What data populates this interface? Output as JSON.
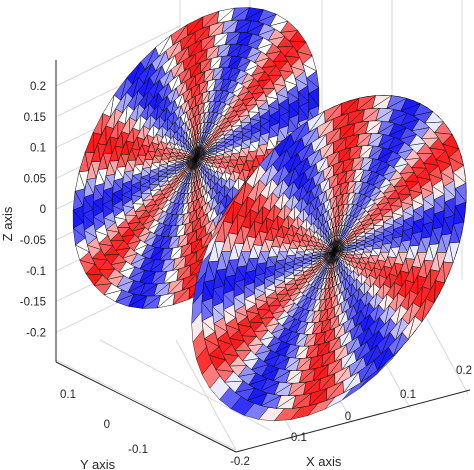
{
  "chart_data": {
    "type": "surface3d",
    "description_visible": "two tilted triangulated discs with a diverging blue-white-red colormap",
    "zlabel": "Z axis",
    "xlabel": "X axis",
    "ylabel": "Y axis",
    "z_ticks": [
      "0.2",
      "0.15",
      "0.1",
      "0.05",
      "0",
      "-0.05",
      "-0.1",
      "-0.15",
      "-0.2"
    ],
    "x_ticks": [
      "-0.2",
      "-0.1",
      "0",
      "0.1",
      "0.2"
    ],
    "y_ticks": [
      "0.1",
      "0",
      "-0.1"
    ],
    "zlim": [
      -0.25,
      0.25
    ],
    "grid": true,
    "colormap": [
      "#1a1aff",
      "#ffffff",
      "#ff1a1a"
    ],
    "discs": [
      {
        "name": "",
        "sectors": 12,
        "rings": 14
      },
      {
        "name": "",
        "sectors": 12,
        "rings": 14
      }
    ]
  }
}
